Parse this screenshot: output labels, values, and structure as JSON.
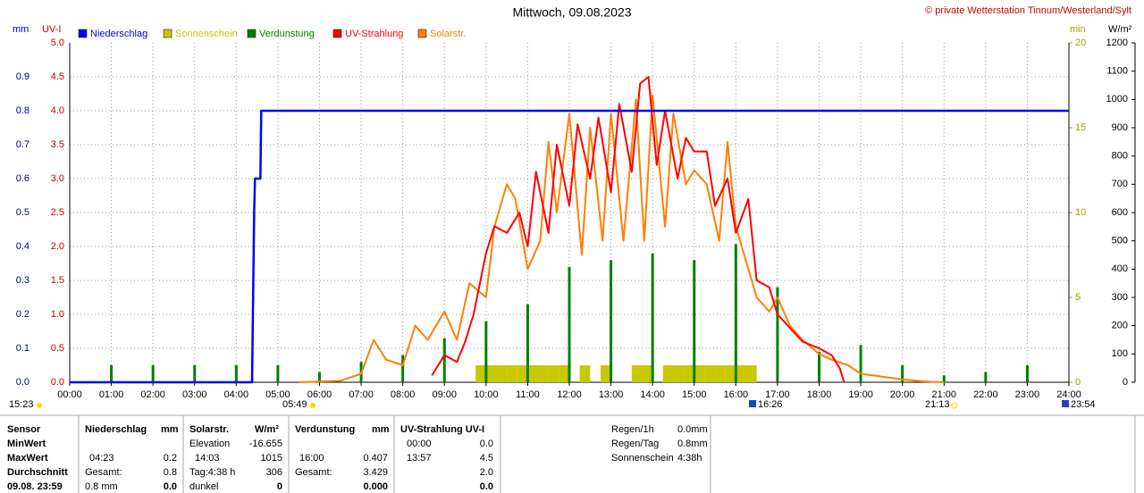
{
  "chart_data": {
    "type": "line",
    "title": "Mittwoch, 09.08.2023",
    "credit": "© private Wetterstation Tinnum/Westerland/Sylt",
    "ylabel": "mm",
    "y2label": "UV-I",
    "y3label": "min",
    "y4label": "W/m²",
    "xlim": [
      0,
      24
    ],
    "xticks": [
      {
        "value": 0,
        "label": "00:00"
      },
      {
        "value": 1,
        "label": "01:00"
      },
      {
        "value": 2,
        "label": "02:00"
      },
      {
        "value": 3,
        "label": "03:00"
      },
      {
        "value": 4,
        "label": "04:00"
      },
      {
        "value": 5,
        "label": "05:00"
      },
      {
        "value": 6,
        "label": "06:00"
      },
      {
        "value": 7,
        "label": "07:00"
      },
      {
        "value": 8,
        "label": "08:00"
      },
      {
        "value": 9,
        "label": "09:00"
      },
      {
        "value": 10,
        "label": "10:00"
      },
      {
        "value": 11,
        "label": "11:00"
      },
      {
        "value": 12,
        "label": "12:00"
      },
      {
        "value": 13,
        "label": "13:00"
      },
      {
        "value": 14,
        "label": "14:00"
      },
      {
        "value": 15,
        "label": "15:00"
      },
      {
        "value": 16,
        "label": "16:00"
      },
      {
        "value": 17,
        "label": "17:00"
      },
      {
        "value": 18,
        "label": "18:00"
      },
      {
        "value": 19,
        "label": "19:00"
      },
      {
        "value": 20,
        "label": "20:00"
      },
      {
        "value": 21,
        "label": "21:00"
      },
      {
        "value": 22,
        "label": "22:00"
      },
      {
        "value": 23,
        "label": "23:00"
      },
      {
        "value": 24,
        "label": "24:00"
      }
    ],
    "ylim": [
      0,
      1
    ],
    "yticks": [
      {
        "value": 0,
        "label": "0.0"
      },
      0.1,
      0.2,
      0.3,
      0.4,
      0.5,
      0.6,
      0.7,
      0.8,
      0.9
    ],
    "y2lim": [
      0,
      5
    ],
    "y2ticks": [
      {
        "value": 0,
        "label": "0.0"
      },
      0.5,
      {
        "value": 1,
        "label": "1.0"
      },
      1.5,
      {
        "value": 2,
        "label": "2.0"
      },
      2.5,
      {
        "value": 3,
        "label": "3.0"
      },
      3.5,
      {
        "value": 4,
        "label": "4.0"
      },
      4.5,
      {
        "value": 5,
        "label": "5.0"
      }
    ],
    "y3lim": [
      0,
      20
    ],
    "y3ticks": [
      0,
      5,
      10,
      15,
      20
    ],
    "y4lim": [
      0,
      1200
    ],
    "y4ticks": [
      0,
      100,
      200,
      300,
      400,
      500,
      600,
      700,
      800,
      900,
      1000,
      1100,
      1200
    ],
    "grid": true,
    "series": [
      {
        "name": "Niederschlag",
        "type": "line",
        "axis": "y",
        "color": "#0000ff",
        "x": [
          0,
          4.38,
          4.4,
          4.43,
          4.45,
          4.58,
          4.6,
          24
        ],
        "values": [
          0,
          0,
          0.2,
          0.5,
          0.6,
          0.6,
          0.8,
          0.8
        ]
      },
      {
        "name": "Sonnenschein",
        "type": "histogram",
        "axis": "y3",
        "color": "#c8c800",
        "bins": [
          9.5,
          9.75,
          10,
          10.25,
          10.5,
          10.75,
          11,
          11.25,
          11.5,
          11.75,
          12,
          12.25,
          12.5,
          12.75,
          13,
          13.25,
          13.5,
          13.75,
          14,
          14.25,
          14.5,
          14.75,
          15,
          15.25,
          15.5,
          15.75,
          16,
          16.25,
          16.5,
          16.75
        ],
        "values": [
          0,
          1,
          1,
          1,
          1,
          1,
          1,
          1,
          1,
          1,
          0,
          1,
          0,
          1,
          0,
          0,
          1,
          1,
          0,
          1,
          1,
          1,
          1,
          1,
          1,
          1,
          1,
          1,
          0
        ]
      },
      {
        "name": "Verdunstung",
        "type": "spike",
        "axis": "y",
        "color": "#008000",
        "x": [
          1,
          2,
          3,
          4,
          5,
          6,
          7,
          8,
          9,
          10,
          11,
          12,
          13,
          14,
          15,
          16,
          17,
          18,
          19,
          20,
          21,
          22,
          23
        ],
        "values": [
          0.05,
          0.05,
          0.05,
          0.05,
          0.05,
          0.03,
          0.06,
          0.08,
          0.13,
          0.18,
          0.23,
          0.34,
          0.36,
          0.38,
          0.36,
          0.407,
          0.28,
          0.09,
          0.11,
          0.05,
          0.02,
          0.03,
          0.05
        ]
      },
      {
        "name": "UV-Strahlung",
        "type": "line",
        "axis": "y2",
        "color": "#ff0000",
        "x": [
          8.7,
          9.0,
          9.3,
          9.5,
          9.7,
          10.0,
          10.2,
          10.5,
          10.8,
          11.0,
          11.2,
          11.5,
          11.7,
          12.0,
          12.2,
          12.5,
          12.7,
          13.0,
          13.2,
          13.5,
          13.7,
          13.9,
          14.1,
          14.3,
          14.6,
          14.8,
          15.0,
          15.3,
          15.5,
          15.8,
          16.0,
          16.3,
          16.5,
          16.8,
          17.0,
          17.3,
          17.6,
          18.0,
          18.3,
          18.5,
          18.6
        ],
        "values": [
          0.1,
          0.4,
          0.3,
          0.6,
          1.0,
          1.9,
          2.3,
          2.2,
          2.5,
          2.0,
          3.1,
          2.2,
          3.5,
          2.6,
          3.8,
          3.0,
          3.9,
          2.8,
          4.1,
          3.1,
          4.4,
          4.5,
          3.2,
          4.0,
          3.0,
          3.6,
          3.4,
          3.4,
          2.6,
          3.0,
          2.2,
          2.7,
          1.5,
          1.4,
          1.0,
          0.8,
          0.6,
          0.5,
          0.4,
          0.2,
          0.0
        ]
      },
      {
        "name": "Solarstr.",
        "type": "line",
        "axis": "y4",
        "color": "#ff8000",
        "x": [
          5.5,
          6.5,
          7.0,
          7.3,
          7.6,
          8.0,
          8.3,
          8.6,
          9.0,
          9.3,
          9.6,
          10.0,
          10.2,
          10.5,
          10.7,
          11.0,
          11.3,
          11.5,
          11.7,
          12.0,
          12.3,
          12.5,
          12.8,
          13.0,
          13.3,
          13.6,
          13.8,
          14.0,
          14.3,
          14.5,
          14.8,
          15.0,
          15.3,
          15.6,
          15.8,
          16.0,
          16.3,
          16.5,
          16.8,
          17.0,
          17.3,
          17.6,
          18.0,
          18.3,
          18.7,
          19.0,
          19.5,
          20.0,
          20.5,
          21.0
        ],
        "values": [
          0,
          5,
          30,
          150,
          80,
          60,
          200,
          150,
          250,
          150,
          350,
          300,
          550,
          700,
          650,
          400,
          500,
          850,
          600,
          950,
          450,
          900,
          500,
          950,
          500,
          1000,
          500,
          1015,
          550,
          950,
          700,
          750,
          700,
          500,
          850,
          550,
          400,
          300,
          250,
          300,
          200,
          150,
          100,
          80,
          60,
          30,
          20,
          10,
          3,
          0
        ]
      }
    ],
    "annotations": [
      {
        "label": "15:23"
      },
      {
        "label": "05:49"
      },
      {
        "label": "16:26"
      },
      {
        "label": "21:13"
      },
      {
        "label": "23:54"
      }
    ]
  },
  "stats": {
    "sensor": [
      "Sensor",
      "MinWert",
      "MaxWert",
      "Durchschnitt",
      "09.08. 23:59"
    ],
    "rain": {
      "header": "Niederschlag",
      "unit": "mm",
      "max_time": "04:23",
      "max": "0.2",
      "total_label": "Gesamt:",
      "total": "0.8",
      "now_label": "0.8 mm",
      "now": "0.0"
    },
    "solar": {
      "header": "Solarstr.",
      "unit": "W/m²",
      "min_label": "Elevation",
      "min": "-16.655",
      "max_time": "14:03",
      "max": "1015",
      "avg_label": "Tag:4:38 h",
      "avg": "306",
      "now_label": "dunkel",
      "now": "0"
    },
    "evap": {
      "header": "Verdunstung",
      "unit": "mm",
      "max_time": "16:00",
      "max": "0.407",
      "total_label": "Gesamt:",
      "total": "3.429",
      "now": "0.000"
    },
    "uv": {
      "header": "UV-Strahlung UV-I",
      "min_time": "00:00",
      "min": "0.0",
      "max_time": "13:57",
      "max": "4.5",
      "avg": "2.0",
      "now": "0.0"
    },
    "extra": [
      [
        "Regen/1h",
        "0.0mm"
      ],
      [
        "Regen/Tag",
        "0.8mm"
      ],
      [
        "Sonnenschein",
        "4:38h"
      ]
    ]
  }
}
